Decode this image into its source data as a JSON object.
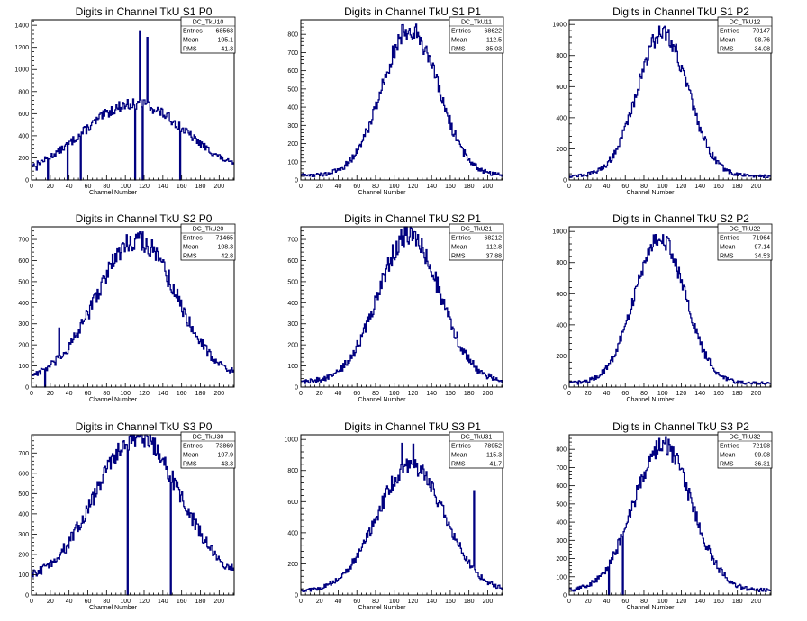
{
  "chart_data": [
    {
      "type": "histogram",
      "title": "Digits in Channel TkU S1 P0",
      "xlabel": "Channel Number",
      "xlim": [
        0,
        216
      ],
      "ylim": [
        0,
        1450
      ],
      "yticks": [
        0,
        200,
        400,
        600,
        800,
        1000,
        1200,
        1400
      ],
      "stats": {
        "name": "DC_TkU10",
        "entries": "68563",
        "mean": "105.1",
        "rms": "41.3"
      },
      "shape": {
        "mu": 110,
        "sigma": 55,
        "peak": 650,
        "base": 40
      },
      "spikes": [
        [
          5,
          90
        ],
        [
          17,
          0
        ],
        [
          38,
          0
        ],
        [
          52,
          0
        ],
        [
          110,
          0
        ],
        [
          115,
          1350
        ],
        [
          118,
          0
        ],
        [
          123,
          1290
        ],
        [
          158,
          0
        ]
      ]
    },
    {
      "type": "histogram",
      "title": "Digits in Channel TkU S1 P1",
      "xlabel": "Channel Number",
      "xlim": [
        0,
        216
      ],
      "ylim": [
        0,
        880
      ],
      "yticks": [
        0,
        100,
        200,
        300,
        400,
        500,
        600,
        700,
        800
      ],
      "stats": {
        "name": "DC_TkU11",
        "entries": "68622",
        "mean": "112.5",
        "rms": "35.03"
      },
      "shape": {
        "mu": 117,
        "sigma": 30,
        "peak": 805,
        "base": 25
      },
      "spikes": []
    },
    {
      "type": "histogram",
      "title": "Digits in Channel TkU S1 P2",
      "xlabel": "Channel Number",
      "xlim": [
        0,
        216
      ],
      "ylim": [
        0,
        1030
      ],
      "yticks": [
        0,
        200,
        400,
        600,
        800,
        1000
      ],
      "stats": {
        "name": "DC_TkU12",
        "entries": "70147",
        "mean": "98.76",
        "rms": "34.08"
      },
      "shape": {
        "mu": 100,
        "sigma": 27,
        "peak": 925,
        "base": 25
      },
      "spikes": []
    },
    {
      "type": "histogram",
      "title": "Digits in Channel TkU S2 P0",
      "xlabel": "Channel Number",
      "xlim": [
        0,
        216
      ],
      "ylim": [
        0,
        760
      ],
      "yticks": [
        0,
        100,
        200,
        300,
        400,
        500,
        600,
        700
      ],
      "stats": {
        "name": "DC_TkU20",
        "entries": "71465",
        "mean": "108.3",
        "rms": "42.8"
      },
      "shape": {
        "mu": 112,
        "sigma": 42,
        "peak": 660,
        "base": 40
      },
      "spikes": [
        [
          14,
          0
        ],
        [
          29,
          280
        ],
        [
          113,
          730
        ]
      ]
    },
    {
      "type": "histogram",
      "title": "Digits in Channel TkU S2 P1",
      "xlabel": "Channel Number",
      "xlim": [
        0,
        216
      ],
      "ylim": [
        0,
        760
      ],
      "yticks": [
        0,
        100,
        200,
        300,
        400,
        500,
        600,
        700
      ],
      "stats": {
        "name": "DC_TkU21",
        "entries": "68212",
        "mean": "112.8",
        "rms": "37.88"
      },
      "shape": {
        "mu": 116,
        "sigma": 33,
        "peak": 695,
        "base": 25
      },
      "spikes": []
    },
    {
      "type": "histogram",
      "title": "Digits in Channel TkU S2 P2",
      "xlabel": "Channel Number",
      "xlim": [
        0,
        216
      ],
      "ylim": [
        0,
        1030
      ],
      "yticks": [
        0,
        200,
        400,
        600,
        800,
        1000
      ],
      "stats": {
        "name": "DC_TkU22",
        "entries": "71964",
        "mean": "97.14",
        "rms": "34.53"
      },
      "shape": {
        "mu": 97,
        "sigma": 27,
        "peak": 935,
        "base": 25
      },
      "spikes": []
    },
    {
      "type": "histogram",
      "title": "Digits in Channel TkU S3 P0",
      "xlabel": "Channel Number",
      "xlim": [
        0,
        216
      ],
      "ylim": [
        0,
        790
      ],
      "yticks": [
        0,
        100,
        200,
        300,
        400,
        500,
        600,
        700
      ],
      "stats": {
        "name": "DC_TkU30",
        "entries": "73869",
        "mean": "107.9",
        "rms": "43.3"
      },
      "shape": {
        "mu": 113,
        "sigma": 45,
        "peak": 710,
        "base": 70
      },
      "spikes": [
        [
          3,
          120
        ],
        [
          102,
          0
        ],
        [
          118,
          750
        ],
        [
          148,
          0
        ]
      ]
    },
    {
      "type": "histogram",
      "title": "Digits in Channel TkU S3 P1",
      "xlabel": "Channel Number",
      "xlim": [
        0,
        216
      ],
      "ylim": [
        0,
        1030
      ],
      "yticks": [
        0,
        200,
        400,
        600,
        800,
        1000
      ],
      "stats": {
        "name": "DC_TkU31",
        "entries": "78952",
        "mean": "115.3",
        "rms": "41.7"
      },
      "shape": {
        "mu": 118,
        "sigma": 36,
        "peak": 810,
        "base": 25
      },
      "spikes": [
        [
          108,
          975
        ],
        [
          120,
          970
        ],
        [
          185,
          670
        ]
      ]
    },
    {
      "type": "histogram",
      "title": "Digits in Channel TkU S3 P2",
      "xlabel": "Channel Number",
      "xlim": [
        0,
        216
      ],
      "ylim": [
        0,
        880
      ],
      "yticks": [
        0,
        100,
        200,
        300,
        400,
        500,
        600,
        700,
        800
      ],
      "stats": {
        "name": "DC_TkU32",
        "entries": "72198",
        "mean": "99.08",
        "rms": "36.31"
      },
      "shape": {
        "mu": 100,
        "sigma": 31,
        "peak": 795,
        "base": 25
      },
      "spikes": [
        [
          42,
          0
        ],
        [
          57,
          0
        ]
      ]
    }
  ],
  "xticks": [
    0,
    20,
    40,
    60,
    80,
    100,
    120,
    140,
    160,
    180,
    200
  ],
  "stats_labels": {
    "entries": "Entries",
    "mean": "Mean",
    "rms": "RMS"
  },
  "colors": {
    "line": "#000080",
    "axis": "#000000",
    "background": "#ffffff"
  }
}
